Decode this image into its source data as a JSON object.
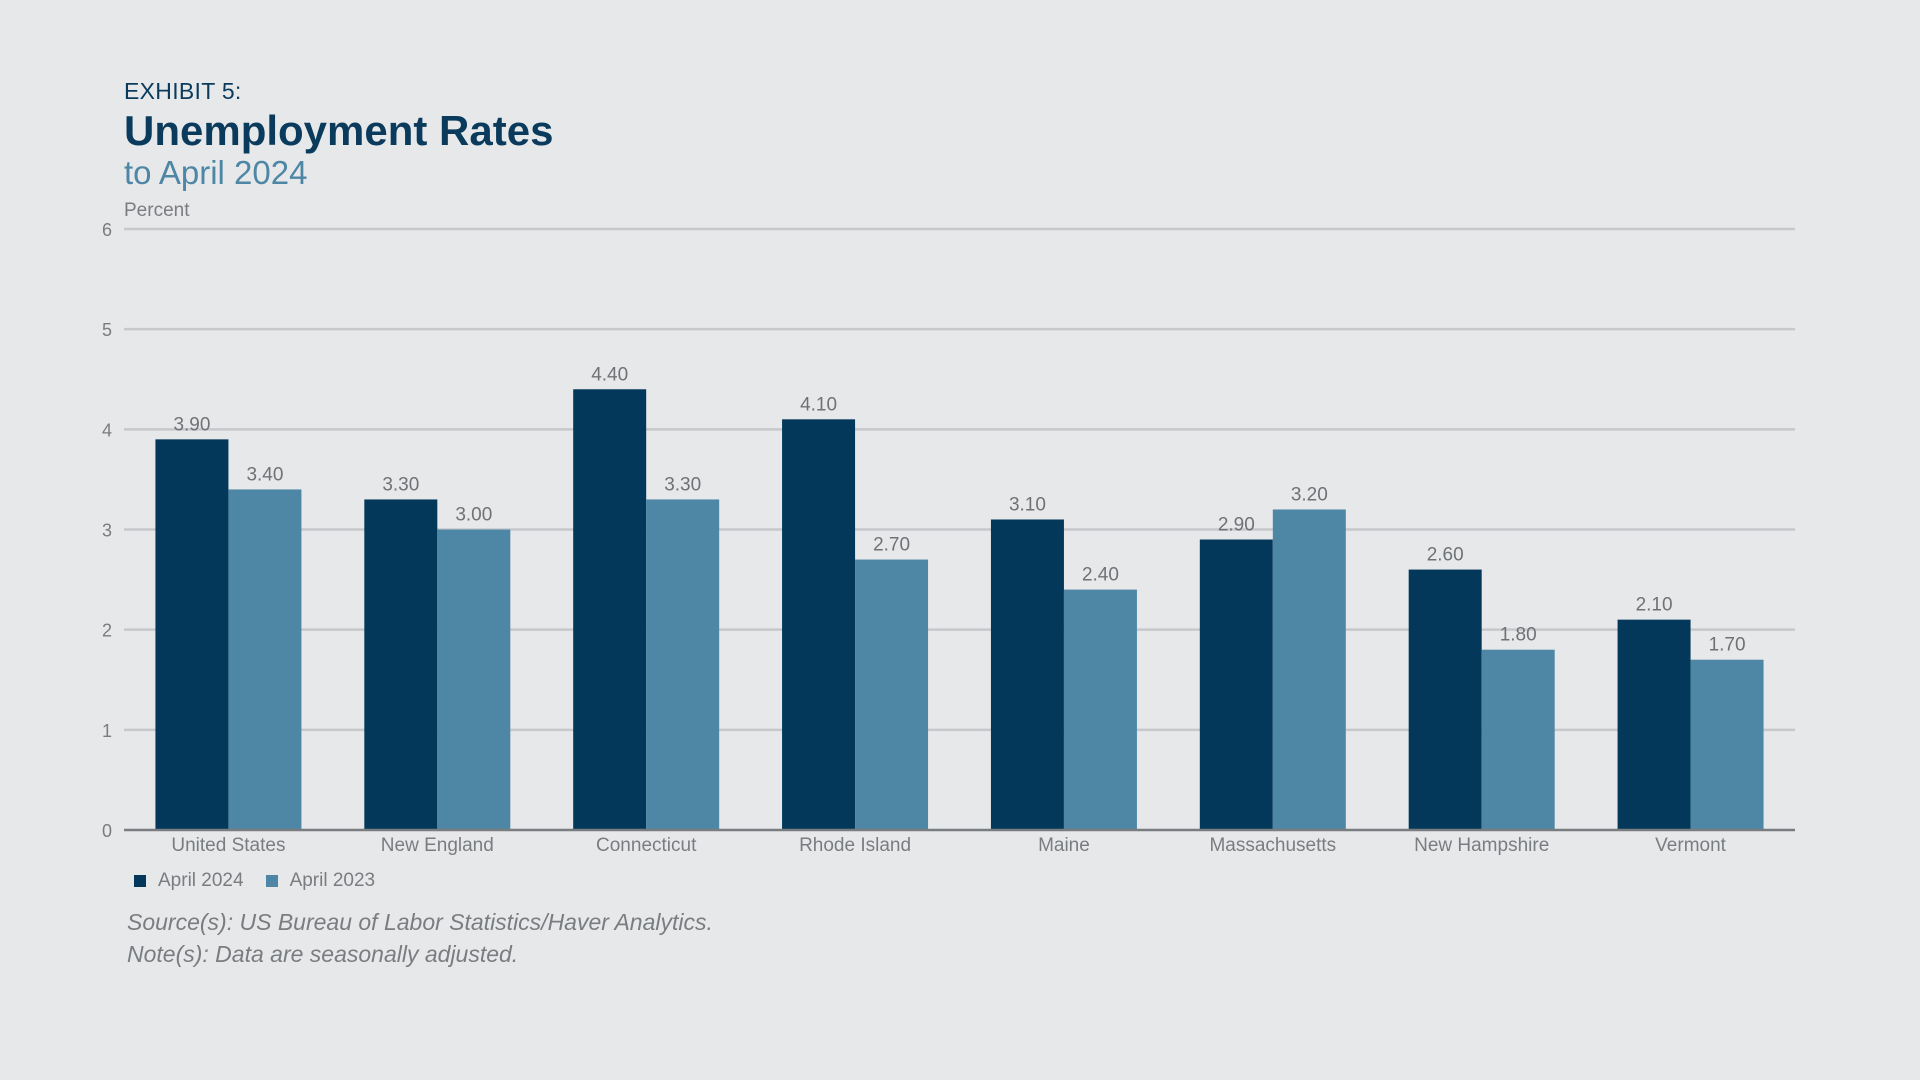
{
  "header": {
    "exhibit": "EXHIBIT 5:",
    "title": "Unemployment Rates",
    "subtitle": "to April 2024"
  },
  "colors": {
    "series_2024": "#03385a",
    "series_2023": "#4e87a5",
    "grid": "#c6c8cb",
    "axis": "#7a7d80",
    "label": "#6f7275"
  },
  "chart_data": {
    "type": "bar",
    "ylabel": "Percent",
    "xlabel": "",
    "ylim": [
      0,
      6
    ],
    "yticks": [
      0,
      1,
      2,
      3,
      4,
      5,
      6
    ],
    "grid": true,
    "legend_position": "bottom-left",
    "categories": [
      "United States",
      "New England",
      "Connecticut",
      "Rhode Island",
      "Maine",
      "Massachusetts",
      "New Hampshire",
      "Vermont"
    ],
    "series": [
      {
        "name": "April 2024",
        "values": [
          3.9,
          3.3,
          4.4,
          4.1,
          3.1,
          2.9,
          2.6,
          2.1
        ],
        "labels": [
          "3.90",
          "3.30",
          "4.40",
          "4.10",
          "3.10",
          "2.90",
          "2.60",
          "2.10"
        ]
      },
      {
        "name": "April 2023",
        "values": [
          3.4,
          3.0,
          3.3,
          2.7,
          2.4,
          3.2,
          1.8,
          1.7
        ],
        "labels": [
          "3.40",
          "3.00",
          "3.30",
          "2.70",
          "2.40",
          "3.20",
          "1.80",
          "1.70"
        ]
      }
    ]
  },
  "footnotes": {
    "source": "Source(s): US Bureau of Labor Statistics/Haver Analytics.",
    "note": "Note(s): Data are seasonally adjusted."
  }
}
